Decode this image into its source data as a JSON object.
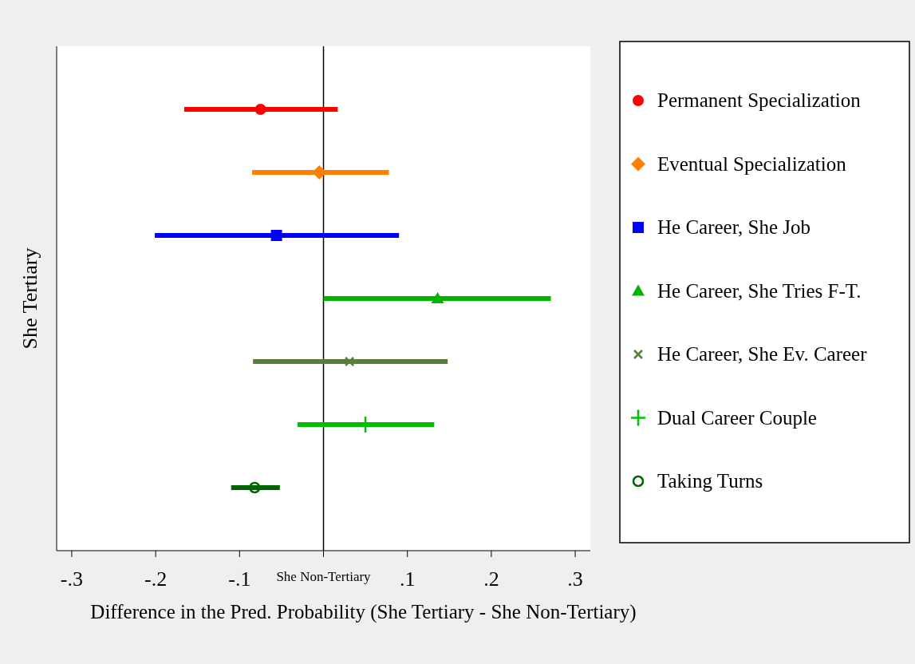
{
  "chart_data": {
    "type": "scatter",
    "orientation": "horizontal",
    "xlabel": "Difference in the Pred. Probability (She Tertiary - She Non-Tertiary)",
    "ylabel": "She Tertiary",
    "categories": [
      null,
      null,
      null,
      null,
      null,
      null,
      null
    ],
    "xlim": [
      -0.318,
      0.318
    ],
    "xticks": [
      {
        "value": -0.3,
        "label": "-.3"
      },
      {
        "value": -0.2,
        "label": "-.2"
      },
      {
        "value": -0.1,
        "label": "-.1"
      },
      {
        "value": 0,
        "label": null
      },
      {
        "value": 0.1,
        "label": ".1"
      },
      {
        "value": 0.2,
        "label": ".2"
      },
      {
        "value": 0.3,
        "label": ".3"
      }
    ],
    "ref_lines": [
      {
        "axis": "x",
        "value": 0,
        "color": "#000000",
        "label": "She Non-Tertiary"
      }
    ],
    "legend": "right",
    "grid": false,
    "series": [
      {
        "name": "Permanent Specialization",
        "color": "#ff0000",
        "marker": "circle",
        "values": [
          -0.075,
          null,
          null,
          null,
          null,
          null,
          null
        ],
        "errors": [
          [
            -0.166,
            0.017
          ],
          null,
          null,
          null,
          null,
          null,
          null
        ]
      },
      {
        "name": "Eventual Specialization",
        "color": "#ff8000",
        "marker": "diamond",
        "values": [
          null,
          -0.005,
          null,
          null,
          null,
          null,
          null
        ],
        "errors": [
          null,
          [
            -0.085,
            0.078
          ],
          null,
          null,
          null,
          null,
          null
        ]
      },
      {
        "name": "He Career, She Job",
        "color": "#0000ff",
        "marker": "square",
        "values": [
          null,
          null,
          -0.056,
          null,
          null,
          null,
          null
        ],
        "errors": [
          null,
          null,
          [
            -0.201,
            0.09
          ],
          null,
          null,
          null,
          null
        ]
      },
      {
        "name": "He Career, She Tries F-T.",
        "color": "#00b400",
        "marker": "triangle",
        "values": [
          null,
          null,
          null,
          0.136,
          null,
          null,
          null
        ],
        "errors": [
          null,
          null,
          null,
          [
            0.0,
            0.271
          ],
          null,
          null,
          null
        ]
      },
      {
        "name": "He Career, She Ev. Career",
        "color": "#5a7d3c",
        "marker": "x",
        "values": [
          null,
          null,
          null,
          null,
          0.031,
          null,
          null
        ],
        "errors": [
          null,
          null,
          null,
          null,
          [
            -0.084,
            0.148
          ],
          null,
          null
        ]
      },
      {
        "name": "Dual Career Couple",
        "color": "#00c000",
        "marker": "cross",
        "values": [
          null,
          null,
          null,
          null,
          null,
          0.05,
          null
        ],
        "errors": [
          null,
          null,
          null,
          null,
          null,
          [
            -0.031,
            0.132
          ],
          null
        ]
      },
      {
        "name": "Taking Turns",
        "color": "#006400",
        "marker": "circle-open",
        "values": [
          null,
          null,
          null,
          null,
          null,
          null,
          -0.082
        ],
        "errors": [
          null,
          null,
          null,
          null,
          null,
          null,
          [
            -0.11,
            -0.052
          ]
        ]
      }
    ]
  }
}
